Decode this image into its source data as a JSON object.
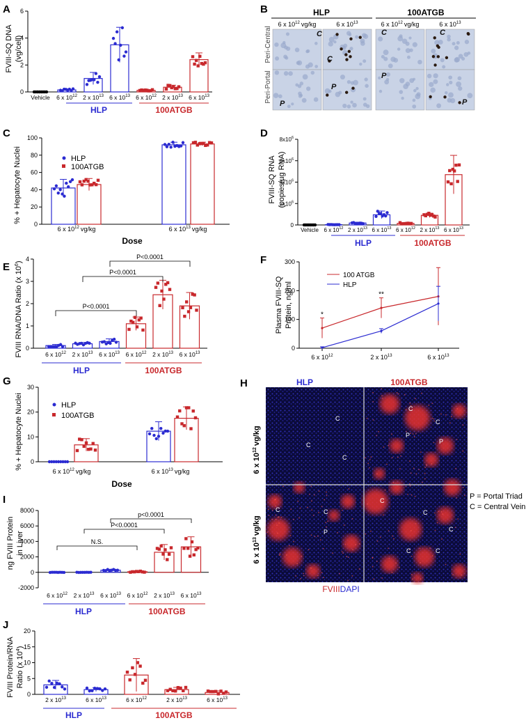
{
  "colors": {
    "hlp": "#2b2bd1",
    "atgb": "#c8282c",
    "bar_edge_hlp": "#3b3bd6",
    "bar_edge_atgb": "#cc2e2e"
  },
  "panels": {
    "A": {
      "letter": "A",
      "ylabel_l1": "FVIII-SQ DNA",
      "ylabel_l2": "(vg/cell)",
      "yticks": [
        "0",
        "2",
        "4",
        "6"
      ],
      "categories": [
        "Vehicle",
        "6 x 10",
        "2 x 10",
        "6 x 10",
        "6 x 10",
        "2 x 10",
        "6 x 10"
      ],
      "exps": [
        "",
        "12",
        "13",
        "13",
        "12",
        "13",
        "13"
      ],
      "group_hlp": "HLP",
      "group_atgb": "100ATGB"
    },
    "B": {
      "letter": "B",
      "hlp": "HLP",
      "atgb": "100ATGB",
      "cols": [
        "6 x 10",
        "6 x 10",
        "6 x 10",
        "6 x 10"
      ],
      "col_exps": [
        "12",
        "13",
        "12",
        "13"
      ],
      "col_unit": "vg/kg",
      "row_labels": [
        "Peri-Central",
        "Peri-Portal"
      ],
      "marks": [
        "C",
        "C",
        "C",
        "C",
        "P",
        "P",
        "P",
        "P"
      ]
    },
    "C": {
      "letter": "C",
      "ylabel": "% + Hepatocyte Nuclei",
      "yticks": [
        "0",
        "20",
        "40",
        "60",
        "80",
        "100"
      ],
      "legend_hlp": "HLP",
      "legend_atgb": "100ATGB",
      "xlabel": "Dose",
      "groups": [
        "6 x 10",
        "6 x 10"
      ],
      "group_exps": [
        "12",
        "13"
      ],
      "unit": "vg/kg"
    },
    "D": {
      "letter": "D",
      "ylabel_l1": "FVIII-SQ RNA",
      "ylabel_l2": "(copies/µg RNA)",
      "yticks": [
        "0",
        "2x10",
        "4x10",
        "6x10",
        "8x10"
      ],
      "ytick_exp": "6",
      "categories": [
        "Vehicle",
        "6 x 10",
        "2 x 10",
        "6 x 10",
        "6 x 10",
        "2 x 10",
        "6 x 10"
      ],
      "exps": [
        "",
        "12",
        "13",
        "13",
        "12",
        "13",
        "13"
      ],
      "group_hlp": "HLP",
      "group_atgb": "100ATGB"
    },
    "E": {
      "letter": "E",
      "ylabel": "FVIII RNA/DNA Ratio (x 10",
      "ylabel_exp": "6",
      "ylabel_end": ")",
      "yticks": [
        "0",
        "1",
        "2",
        "3",
        "4"
      ],
      "categories": [
        "6 x 10",
        "2 x 10",
        "6 x 10",
        "6 x 10",
        "2 x 10",
        "6 x 10"
      ],
      "exps": [
        "12",
        "13",
        "13",
        "12",
        "13",
        "13"
      ],
      "p1": "P<0.0001",
      "p2": "P<0.0001",
      "p3": "P<0.0001",
      "group_hlp": "HLP",
      "group_atgb": "100ATGB"
    },
    "F": {
      "letter": "F",
      "ylabel_l1": "Plasma FVIII-SQ",
      "ylabel_l2": "Protein, ng/ml",
      "yticks": [
        "0",
        "100",
        "200",
        "300"
      ],
      "xticks": [
        "6 x 10",
        "2 x 10",
        "6 x 10"
      ],
      "xexps": [
        "12",
        "13",
        "13"
      ],
      "legend_atgb": "100 ATGB",
      "legend_hlp": "HLP",
      "star1": "*",
      "star2": "**"
    },
    "G": {
      "letter": "G",
      "ylabel": "% + Hepatocyte Nuclei",
      "yticks": [
        "0",
        "10",
        "20",
        "30"
      ],
      "legend_hlp": "HLP",
      "legend_atgb": "100ATGB",
      "xlabel": "Dose",
      "groups": [
        "6 x 10",
        "6 x 10"
      ],
      "group_exps": [
        "12",
        "13"
      ],
      "unit": "vg/kg"
    },
    "H": {
      "letter": "H",
      "hlp": "HLP",
      "atgb": "100ATGB",
      "row1_prefix": "6 x 10",
      "row1_exp": "12",
      "row2_prefix": "6 x 10",
      "row2_exp": "13",
      "row_unit": "vg/kg",
      "legend_p": "P = Portal Triad",
      "legend_c": "C = Central Vein",
      "fviii": "FVIII",
      "dapi": "DAPI",
      "marks": [
        "C",
        "C",
        "C",
        "C",
        "P",
        "P",
        "C",
        "C",
        "C",
        "P",
        "C",
        "C",
        "C",
        "C",
        "C"
      ]
    },
    "I": {
      "letter": "I",
      "ylabel_l1": "ng FVIII Protein",
      "ylabel_l2": "in Liver",
      "yticks": [
        "-2000",
        "0",
        "2000",
        "4000",
        "6000",
        "8000"
      ],
      "categories": [
        "6 x 10",
        "2 x 10",
        "6 x 10",
        "6 x 10",
        "2 x 10",
        "6 x 10"
      ],
      "exps": [
        "12",
        "13",
        "13",
        "12",
        "13",
        "13"
      ],
      "ns": "N.S.",
      "p1": "P<0.0001",
      "p2": "p<0.0001",
      "group_hlp": "HLP",
      "group_atgb": "100ATGB"
    },
    "J": {
      "letter": "J",
      "ylabel_l1": "FVIII Protein/RNA",
      "ylabel_l2": "Ratio (x 10",
      "ylabel_exp": "4",
      "ylabel_end": ")",
      "yticks": [
        "0",
        "5",
        "10",
        "15",
        "20"
      ],
      "categories": [
        "2 x 10",
        "6 x 10",
        "6 x 10",
        "2 x 10",
        "6 x 10"
      ],
      "exps": [
        "13",
        "13",
        "12",
        "13",
        "13"
      ],
      "group_hlp": "HLP",
      "group_atgb": "100ATGB"
    }
  },
  "chart_data": [
    {
      "panel": "A",
      "type": "bar",
      "ylim": [
        0,
        6
      ],
      "categories": [
        "Vehicle",
        "HLP 6x10^12",
        "HLP 2x10^13",
        "HLP 6x10^13",
        "100ATGB 6x10^12",
        "100ATGB 2x10^13",
        "100ATGB 6x10^13"
      ],
      "values": [
        0,
        0.15,
        1.0,
        3.5,
        0.12,
        0.35,
        2.4
      ],
      "errors": [
        0,
        0.08,
        0.45,
        1.3,
        0.05,
        0.15,
        0.5
      ]
    },
    {
      "panel": "C",
      "type": "bar",
      "ylim": [
        0,
        100
      ],
      "groups": [
        "6x10^12 vg/kg",
        "6x10^13 vg/kg"
      ],
      "series": [
        {
          "name": "HLP",
          "values": [
            42,
            92
          ],
          "errors": [
            10,
            3
          ]
        },
        {
          "name": "100ATGB",
          "values": [
            46,
            93
          ],
          "errors": [
            7,
            2
          ]
        }
      ]
    },
    {
      "panel": "D",
      "type": "bar",
      "ylim": [
        0,
        8000000
      ],
      "categories": [
        "Vehicle",
        "HLP 6x10^12",
        "HLP 2x10^13",
        "HLP 6x10^13",
        "100ATGB 6x10^12",
        "100ATGB 2x10^13",
        "100ATGB 6x10^13"
      ],
      "values": [
        0,
        30000,
        180000,
        950000,
        150000,
        900000,
        4700000
      ],
      "errors": [
        0,
        20000,
        80000,
        350000,
        70000,
        200000,
        1800000
      ]
    },
    {
      "panel": "E",
      "type": "bar",
      "ylim": [
        0,
        4
      ],
      "categories": [
        "HLP 6x10^12",
        "HLP 2x10^13",
        "HLP 6x10^13",
        "100ATGB 6x10^12",
        "100ATGB 2x10^13",
        "100ATGB 6x10^13"
      ],
      "values": [
        0.12,
        0.2,
        0.3,
        1.1,
        2.4,
        1.9
      ],
      "errors": [
        0.05,
        0.06,
        0.12,
        0.3,
        0.65,
        0.6
      ]
    },
    {
      "panel": "F",
      "type": "line",
      "ylim": [
        0,
        300
      ],
      "x": [
        "6x10^12",
        "2x10^13",
        "6x10^13"
      ],
      "series": [
        {
          "name": "100 ATGB",
          "values": [
            70,
            140,
            180
          ],
          "errors": [
            35,
            35,
            100
          ]
        },
        {
          "name": "HLP",
          "values": [
            2,
            60,
            155
          ],
          "errors": [
            3,
            8,
            60
          ]
        }
      ]
    },
    {
      "panel": "G",
      "type": "bar",
      "ylim": [
        0,
        30
      ],
      "groups": [
        "6x10^12 vg/kg",
        "6x10^13 vg/kg"
      ],
      "series": [
        {
          "name": "HLP",
          "values": [
            0,
            12.3
          ],
          "errors": [
            0,
            3.8
          ]
        },
        {
          "name": "100ATGB",
          "values": [
            6.8,
            17.5
          ],
          "errors": [
            2.5,
            4.6
          ]
        }
      ]
    },
    {
      "panel": "I",
      "type": "bar",
      "ylim": [
        -2000,
        8000
      ],
      "categories": [
        "HLP 6x10^12",
        "HLP 2x10^13",
        "HLP 6x10^13",
        "100ATGB 6x10^12",
        "100ATGB 2x10^13",
        "100ATGB 6x10^13"
      ],
      "values": [
        0,
        0,
        280,
        80,
        2600,
        3300
      ],
      "errors": [
        20,
        20,
        120,
        80,
        1000,
        1300
      ]
    },
    {
      "panel": "J",
      "type": "bar",
      "ylim": [
        0,
        20
      ],
      "categories": [
        "HLP 2x10^13",
        "HLP 6x10^13",
        "100ATGB 6x10^12",
        "100ATGB 2x10^13",
        "100ATGB 6x10^13"
      ],
      "values": [
        3.0,
        1.5,
        6.1,
        1.5,
        0.6
      ],
      "errors": [
        1.4,
        0.6,
        5.2,
        0.7,
        0.5
      ]
    }
  ]
}
